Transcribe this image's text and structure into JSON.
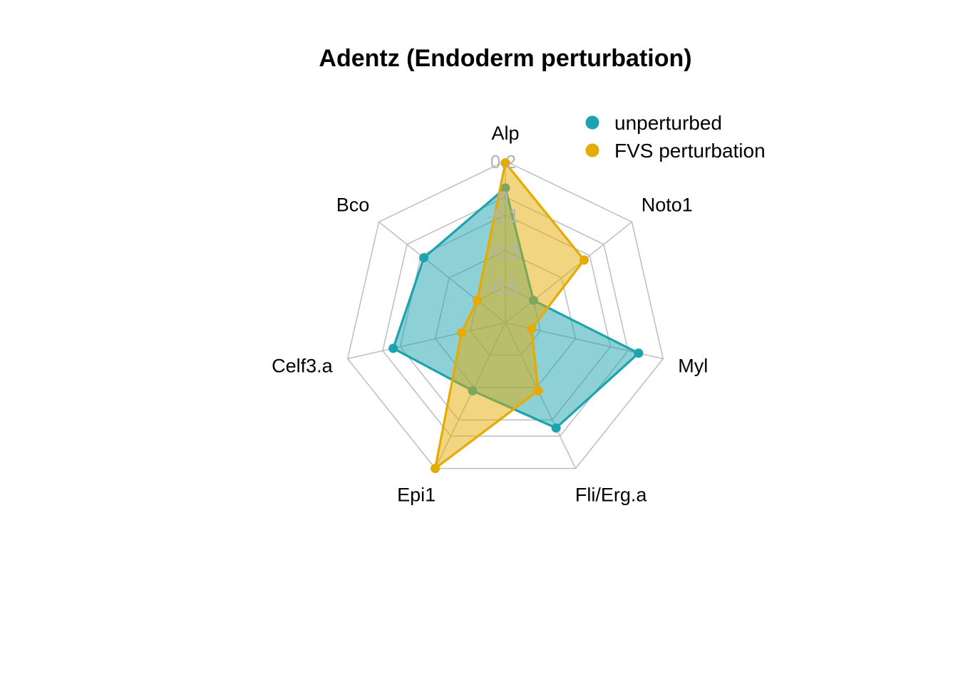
{
  "chart_data": {
    "type": "radar",
    "title": "Adentz (Endoderm perturbation)",
    "axes": [
      "Alp",
      "Noto1",
      "Myl",
      "Fli/Erg.a",
      "Epi1",
      "Celf3.a",
      "Bco"
    ],
    "range": [
      -0.7,
      0.2
    ],
    "grid_levels": [
      -0.7,
      -0.5,
      -0.3,
      -0.1,
      0.0,
      0.2
    ],
    "tick_labels": [
      {
        "value": 0.2,
        "label": "0.2"
      },
      {
        "value": 0.0,
        "label": "0"
      },
      {
        "value": -0.1,
        "label": "-0.1"
      },
      {
        "value": -0.3,
        "label": "-0.3"
      },
      {
        "value": -0.5,
        "label": "-0.5"
      }
    ],
    "series": [
      {
        "name": "unperturbed",
        "color": "#1BA3B0",
        "fill": "rgba(27,163,176,0.5)",
        "values": [
          0.05,
          -0.5,
          0.06,
          -0.05,
          -0.28,
          -0.06,
          -0.12
        ]
      },
      {
        "name": "FVS perturbation",
        "color": "#E6AB02",
        "fill": "rgba(230,171,2,0.5)",
        "values": [
          0.19,
          -0.14,
          -0.55,
          -0.28,
          0.2,
          -0.45,
          -0.5
        ]
      }
    ],
    "legend": {
      "position": "top-right",
      "entries": [
        "unperturbed",
        "FVS perturbation"
      ]
    }
  }
}
